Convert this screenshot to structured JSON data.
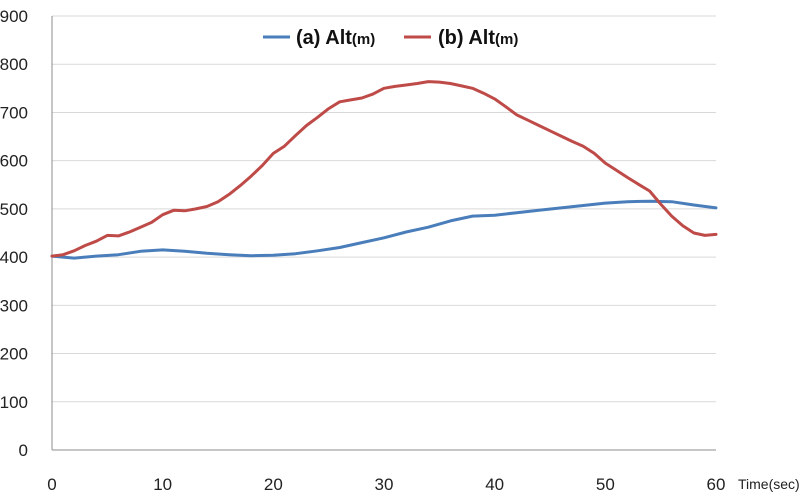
{
  "chart_data": {
    "type": "line",
    "xlabel": "Time(sec)",
    "ylabel": "",
    "title": "",
    "xlim": [
      0,
      60
    ],
    "ylim": [
      0,
      900
    ],
    "xticks": [
      0,
      10,
      20,
      30,
      40,
      50,
      60
    ],
    "yticks": [
      0,
      100,
      200,
      300,
      400,
      500,
      600,
      700,
      800,
      900
    ],
    "grid": "horizontal",
    "legend_position": "top-center",
    "series": [
      {
        "name_main": "(a) Alt",
        "name_unit": "(m)",
        "color": "#4a7ebb",
        "points": [
          [
            0,
            402
          ],
          [
            2,
            398
          ],
          [
            4,
            402
          ],
          [
            6,
            405
          ],
          [
            8,
            412
          ],
          [
            10,
            415
          ],
          [
            12,
            412
          ],
          [
            14,
            408
          ],
          [
            16,
            405
          ],
          [
            18,
            403
          ],
          [
            20,
            404
          ],
          [
            22,
            407
          ],
          [
            24,
            413
          ],
          [
            26,
            420
          ],
          [
            28,
            430
          ],
          [
            30,
            440
          ],
          [
            32,
            452
          ],
          [
            34,
            462
          ],
          [
            36,
            475
          ],
          [
            38,
            485
          ],
          [
            40,
            487
          ],
          [
            42,
            492
          ],
          [
            44,
            497
          ],
          [
            46,
            502
          ],
          [
            48,
            507
          ],
          [
            50,
            512
          ],
          [
            52,
            515
          ],
          [
            54,
            516
          ],
          [
            56,
            515
          ],
          [
            58,
            508
          ],
          [
            60,
            502
          ]
        ]
      },
      {
        "name_main": "(b) Alt",
        "name_unit": "(m)",
        "color": "#be4b48",
        "points": [
          [
            0,
            402
          ],
          [
            1,
            405
          ],
          [
            2,
            413
          ],
          [
            3,
            424
          ],
          [
            4,
            433
          ],
          [
            5,
            445
          ],
          [
            6,
            444
          ],
          [
            7,
            452
          ],
          [
            8,
            462
          ],
          [
            9,
            472
          ],
          [
            10,
            488
          ],
          [
            11,
            497
          ],
          [
            12,
            496
          ],
          [
            13,
            500
          ],
          [
            14,
            505
          ],
          [
            15,
            515
          ],
          [
            16,
            530
          ],
          [
            17,
            548
          ],
          [
            18,
            568
          ],
          [
            19,
            590
          ],
          [
            20,
            615
          ],
          [
            21,
            630
          ],
          [
            22,
            652
          ],
          [
            23,
            673
          ],
          [
            24,
            690
          ],
          [
            25,
            708
          ],
          [
            26,
            722
          ],
          [
            27,
            726
          ],
          [
            28,
            730
          ],
          [
            29,
            738
          ],
          [
            30,
            750
          ],
          [
            31,
            754
          ],
          [
            32,
            757
          ],
          [
            33,
            760
          ],
          [
            34,
            764
          ],
          [
            35,
            763
          ],
          [
            36,
            760
          ],
          [
            37,
            755
          ],
          [
            38,
            750
          ],
          [
            39,
            740
          ],
          [
            40,
            728
          ],
          [
            41,
            712
          ],
          [
            42,
            695
          ],
          [
            43,
            684
          ],
          [
            44,
            673
          ],
          [
            45,
            662
          ],
          [
            46,
            651
          ],
          [
            47,
            640
          ],
          [
            48,
            630
          ],
          [
            49,
            615
          ],
          [
            50,
            595
          ],
          [
            51,
            580
          ],
          [
            52,
            565
          ],
          [
            53,
            551
          ],
          [
            54,
            537
          ],
          [
            55,
            510
          ],
          [
            56,
            485
          ],
          [
            57,
            465
          ],
          [
            58,
            450
          ],
          [
            59,
            445
          ],
          [
            60,
            447
          ]
        ]
      }
    ]
  }
}
